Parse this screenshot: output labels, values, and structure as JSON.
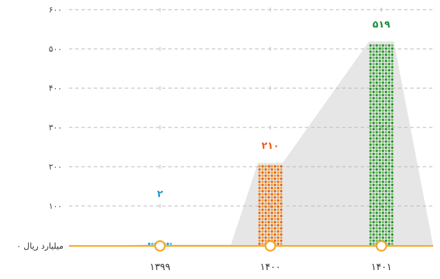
{
  "chart_data": {
    "type": "bar",
    "categories": [
      "۱۳۹۹",
      "۱۴۰۰",
      "۱۴۰۱"
    ],
    "values": [
      2,
      210,
      519
    ],
    "value_labels": [
      "۲",
      "۲۱۰",
      "۵۱۹"
    ],
    "bar_colors": [
      "#1a9ad6",
      "#e8601c",
      "#1e8e3e"
    ],
    "bar_dot_colors": [
      "#5bc0f0",
      "#f0a12b",
      "#6cc04a"
    ],
    "ylim": [
      0,
      600
    ],
    "yticks": [
      0,
      100,
      200,
      300,
      400,
      500,
      600
    ],
    "ytick_labels": [
      "۰",
      "۱۰۰",
      "۲۰۰",
      "۳۰۰",
      "۴۰۰",
      "۵۰۰",
      "۶۰۰"
    ],
    "zero_label": "۰ میلیارد ریال",
    "grid": true,
    "background_area_color": "#e6e6e6",
    "axis_color": "#f5a623",
    "grid_color": "#b5b5b5"
  }
}
